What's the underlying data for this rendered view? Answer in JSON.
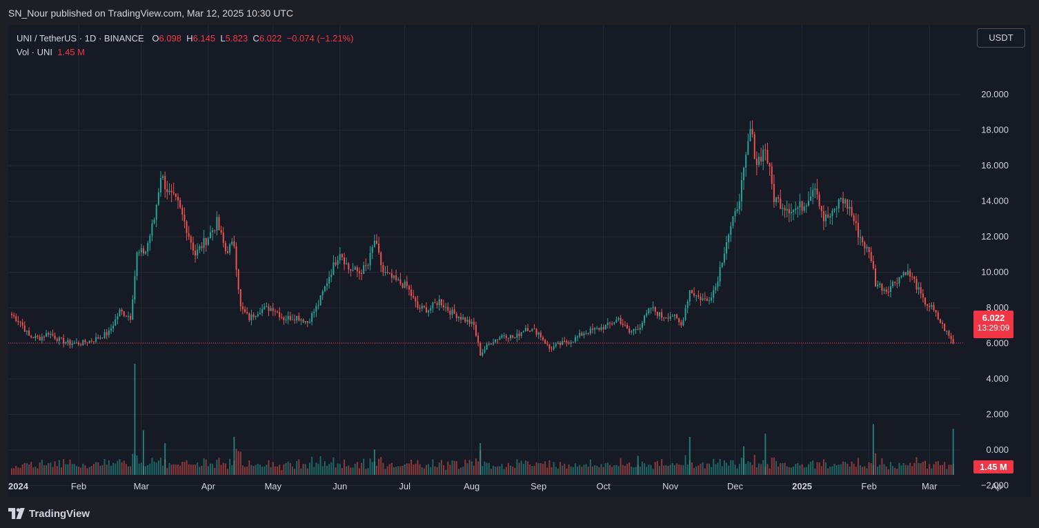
{
  "header": {
    "attribution": "SN_Nour published on TradingView.com, Mar 12, 2025 10:30 UTC"
  },
  "legend": {
    "symbol": "UNI / TetherUS · 1D · BINANCE",
    "open_label": "O",
    "open": "6.098",
    "high_label": "H",
    "high": "6.145",
    "low_label": "L",
    "low": "5.823",
    "close_label": "C",
    "close": "6.022",
    "change": "−0.074 (−1.21%)",
    "volume_label": "Vol · UNI",
    "volume": "1.45 M"
  },
  "currency_button": "USDT",
  "price_tag": {
    "price": "6.022",
    "countdown": "13:29:09"
  },
  "volume_tag": "1.45 M",
  "footer": {
    "brand": "TradingView",
    "logo_icon": "tradingview-logo-icon"
  },
  "colors": {
    "up": "#26a69a",
    "down": "#ef5350",
    "background": "#161a25",
    "grid": "#242836",
    "last_price": "#f23645"
  },
  "chart_data": {
    "type": "candlestick",
    "title": "UNI / TetherUS · 1D · BINANCE",
    "y_axis": {
      "ticks": [
        20,
        18,
        16,
        14,
        12,
        10,
        8,
        6,
        4,
        2,
        0,
        -2
      ],
      "tick_labels": [
        "20.000",
        "18.000",
        "16.000",
        "14.000",
        "12.000",
        "10.000",
        "8.000",
        "6.000",
        "4.000",
        "2.000",
        "0.000",
        "−2.000"
      ]
    },
    "x_axis": {
      "start": "2024-01-01",
      "end": "2025-03-12",
      "month_labels": [
        "2024",
        "Feb",
        "Mar",
        "Apr",
        "May",
        "Jun",
        "Jul",
        "Aug",
        "Sep",
        "Oct",
        "Nov",
        "Dec",
        "2025",
        "Feb",
        "Mar",
        "Ap"
      ]
    },
    "grid": true,
    "last_price": 6.022,
    "close_series": [
      [
        "2024-01-01",
        7.6
      ],
      [
        "2024-01-05",
        7.2
      ],
      [
        "2024-01-09",
        6.4
      ],
      [
        "2024-01-14",
        6.3
      ],
      [
        "2024-01-18",
        6.6
      ],
      [
        "2024-01-23",
        6.2
      ],
      [
        "2024-01-28",
        6.0
      ],
      [
        "2024-02-02",
        6.0
      ],
      [
        "2024-02-08",
        6.2
      ],
      [
        "2024-02-15",
        6.6
      ],
      [
        "2024-02-20",
        7.8
      ],
      [
        "2024-02-25",
        7.5
      ],
      [
        "2024-02-28",
        11.0
      ],
      [
        "2024-03-03",
        11.2
      ],
      [
        "2024-03-07",
        13.0
      ],
      [
        "2024-03-10",
        15.5
      ],
      [
        "2024-03-14",
        14.4
      ],
      [
        "2024-03-18",
        13.8
      ],
      [
        "2024-03-22",
        12.5
      ],
      [
        "2024-03-26",
        11.0
      ],
      [
        "2024-04-01",
        12.0
      ],
      [
        "2024-04-05",
        12.8
      ],
      [
        "2024-04-09",
        11.2
      ],
      [
        "2024-04-13",
        11.6
      ],
      [
        "2024-04-16",
        8.0
      ],
      [
        "2024-04-20",
        7.4
      ],
      [
        "2024-04-25",
        7.9
      ],
      [
        "2024-05-01",
        8.0
      ],
      [
        "2024-05-06",
        7.4
      ],
      [
        "2024-05-12",
        7.5
      ],
      [
        "2024-05-17",
        7.2
      ],
      [
        "2024-05-22",
        8.2
      ],
      [
        "2024-05-27",
        9.8
      ],
      [
        "2024-06-01",
        11.2
      ],
      [
        "2024-06-05",
        10.2
      ],
      [
        "2024-06-10",
        10.0
      ],
      [
        "2024-06-14",
        10.4
      ],
      [
        "2024-06-17",
        11.8
      ],
      [
        "2024-06-21",
        10.0
      ],
      [
        "2024-06-27",
        9.5
      ],
      [
        "2024-07-02",
        9.2
      ],
      [
        "2024-07-07",
        8.0
      ],
      [
        "2024-07-12",
        7.9
      ],
      [
        "2024-07-17",
        8.4
      ],
      [
        "2024-07-22",
        7.8
      ],
      [
        "2024-07-28",
        7.4
      ],
      [
        "2024-08-02",
        7.0
      ],
      [
        "2024-08-05",
        5.4
      ],
      [
        "2024-08-10",
        6.1
      ],
      [
        "2024-08-16",
        6.5
      ],
      [
        "2024-08-21",
        6.3
      ],
      [
        "2024-08-26",
        6.9
      ],
      [
        "2024-09-01",
        6.6
      ],
      [
        "2024-09-06",
        5.7
      ],
      [
        "2024-09-12",
        6.0
      ],
      [
        "2024-09-17",
        6.2
      ],
      [
        "2024-09-22",
        6.6
      ],
      [
        "2024-09-28",
        6.8
      ],
      [
        "2024-10-03",
        7.0
      ],
      [
        "2024-10-08",
        7.4
      ],
      [
        "2024-10-13",
        6.6
      ],
      [
        "2024-10-18",
        7.0
      ],
      [
        "2024-10-23",
        8.0
      ],
      [
        "2024-10-28",
        7.5
      ],
      [
        "2024-11-02",
        7.6
      ],
      [
        "2024-11-06",
        7.0
      ],
      [
        "2024-11-10",
        9.0
      ],
      [
        "2024-11-14",
        8.6
      ],
      [
        "2024-11-18",
        8.4
      ],
      [
        "2024-11-22",
        9.2
      ],
      [
        "2024-11-27",
        11.8
      ],
      [
        "2024-12-01",
        13.2
      ],
      [
        "2024-12-05",
        15.5
      ],
      [
        "2024-12-08",
        18.0
      ],
      [
        "2024-12-11",
        16.2
      ],
      [
        "2024-12-15",
        17.0
      ],
      [
        "2024-12-19",
        14.2
      ],
      [
        "2024-12-23",
        13.8
      ],
      [
        "2024-12-28",
        13.5
      ],
      [
        "2025-01-02",
        13.8
      ],
      [
        "2025-01-07",
        15.0
      ],
      [
        "2025-01-11",
        13.0
      ],
      [
        "2025-01-15",
        13.2
      ],
      [
        "2025-01-19",
        14.2
      ],
      [
        "2025-01-23",
        13.6
      ],
      [
        "2025-01-27",
        12.2
      ],
      [
        "2025-02-02",
        10.8
      ],
      [
        "2025-02-04",
        9.4
      ],
      [
        "2025-02-09",
        9.0
      ],
      [
        "2025-02-14",
        9.6
      ],
      [
        "2025-02-18",
        10.1
      ],
      [
        "2025-02-22",
        9.5
      ],
      [
        "2025-02-26",
        8.4
      ],
      [
        "2025-03-02",
        8.0
      ],
      [
        "2025-03-06",
        7.2
      ],
      [
        "2025-03-10",
        6.4
      ],
      [
        "2025-03-12",
        6.02
      ]
    ],
    "volume_series": [
      [
        "2024-02-27",
        3.5
      ],
      [
        "2024-03-02",
        1.4
      ],
      [
        "2024-03-12",
        1.0
      ],
      [
        "2024-04-13",
        1.2
      ],
      [
        "2024-06-17",
        0.8
      ],
      [
        "2024-08-05",
        1.0
      ],
      [
        "2024-10-17",
        0.6
      ],
      [
        "2024-11-10",
        1.2
      ],
      [
        "2024-12-05",
        0.9
      ],
      [
        "2024-12-15",
        1.3
      ],
      [
        "2025-02-03",
        1.6
      ],
      [
        "2025-03-12",
        1.45
      ]
    ]
  }
}
